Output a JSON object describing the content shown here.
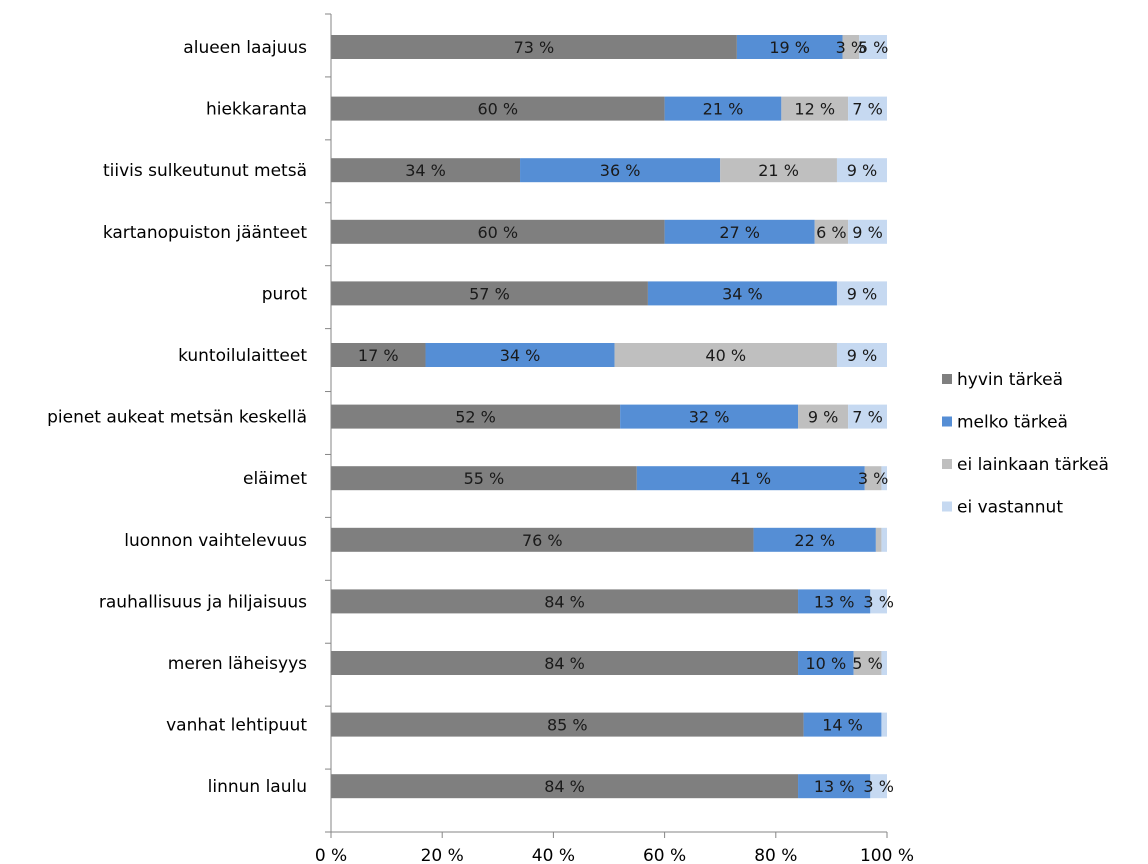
{
  "chart_data": {
    "type": "bar",
    "orientation": "horizontal",
    "stacked": true,
    "percent_stacked": true,
    "categories": [
      "alueen laajuus",
      "hiekkaranta",
      "tiivis sulkeutunut metsä",
      "kartanopuiston jäänteet",
      "purot",
      "kuntoilulaitteet",
      "pienet aukeat metsän keskellä",
      "eläimet",
      "luonnon vaihtelevuus",
      "rauhallisuus ja hiljaisuus",
      "meren läheisyys",
      "vanhat lehtipuut",
      "linnun laulu"
    ],
    "series": [
      {
        "name": "hyvin tärkeä",
        "color": "#7f7f7f",
        "values": [
          73,
          60,
          34,
          60,
          57,
          17,
          52,
          55,
          76,
          84,
          84,
          85,
          84
        ],
        "labels": [
          "73 %",
          "60 %",
          "34 %",
          "60 %",
          "57 %",
          "17 %",
          "52 %",
          "55 %",
          "76 %",
          "84 %",
          "84 %",
          "85 %",
          "84 %"
        ]
      },
      {
        "name": "melko tärkeä",
        "color": "#558ed5",
        "values": [
          19,
          21,
          36,
          27,
          34,
          34,
          32,
          41,
          22,
          13,
          10,
          14,
          13
        ],
        "labels": [
          "19 %",
          "21 %",
          "36 %",
          "27 %",
          "34 %",
          "34 %",
          "32 %",
          "41 %",
          "22 %",
          "13 %",
          "10 %",
          "14 %",
          "13 %"
        ]
      },
      {
        "name": "ei lainkaan tärkeä",
        "color": "#bfbfbf",
        "values": [
          3,
          12,
          21,
          6,
          0,
          40,
          9,
          3,
          1,
          0,
          5,
          0,
          0
        ],
        "labels": [
          "3 %",
          "12 %",
          "21 %",
          "6 %",
          "",
          "40 %",
          "9 %",
          "3 %",
          "",
          "",
          "5 %",
          "",
          ""
        ]
      },
      {
        "name": "ei vastannut",
        "color": "#c6d9f1",
        "values": [
          5,
          7,
          9,
          9,
          9,
          9,
          7,
          1,
          1,
          3,
          1,
          1,
          3
        ],
        "labels": [
          "5 %",
          "7 %",
          "9 %",
          "9 %",
          "9 %",
          "9 %",
          "7 %",
          "",
          "",
          "3 %",
          "",
          "",
          "3 %"
        ]
      }
    ],
    "x_ticks": [
      "0 %",
      "20 %",
      "40 %",
      "60 %",
      "80 %",
      "100 %"
    ],
    "xlim": [
      0,
      100
    ],
    "legend_position": "right",
    "grid": false
  }
}
